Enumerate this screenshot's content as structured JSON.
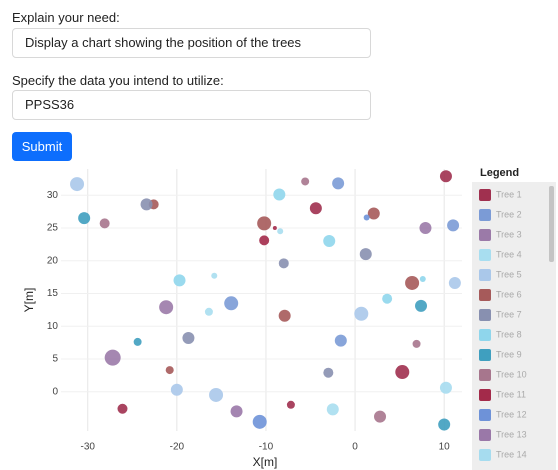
{
  "form": {
    "need_label": "Explain your need:",
    "need_value": "Display a chart showing the position of the trees",
    "data_label": "Specify the data you intend to utilize:",
    "data_value": "PPSS36",
    "submit": "Submit"
  },
  "chart_data": {
    "type": "scatter",
    "xlabel": "X[m]",
    "ylabel": "Y[m]",
    "legend_title": "Legend",
    "legend": "right",
    "grid": true,
    "xlim": [
      -33,
      12
    ],
    "ylim": [
      -6,
      34
    ],
    "xticks": [
      -30,
      -20,
      -10,
      0,
      10
    ],
    "yticks": [
      0,
      5,
      10,
      15,
      20,
      25,
      30
    ],
    "series": [
      {
        "name": "Tree 1",
        "color": "#a0304f",
        "x": [
          -26.1,
          -7.2,
          -4.4,
          5.3,
          10.2
        ],
        "values": [
          -2.6,
          -2.0,
          28.0,
          3.0,
          32.9
        ],
        "sizes": [
          5,
          4,
          6,
          7,
          6
        ]
      },
      {
        "name": "Tree 2",
        "color": "#7b9bd6",
        "x": [
          -13.9,
          -1.9,
          -1.6,
          11.0
        ],
        "values": [
          13.5,
          31.8,
          7.8,
          25.4
        ],
        "sizes": [
          7,
          6,
          6,
          6
        ]
      },
      {
        "name": "Tree 3",
        "color": "#9b7aa8",
        "x": [
          -27.2,
          -21.2,
          7.9
        ],
        "values": [
          5.2,
          12.9,
          25.0
        ],
        "sizes": [
          8,
          7,
          6
        ]
      },
      {
        "name": "Tree 4",
        "color": "#a8def0",
        "x": [
          -16.4,
          -15.8,
          -8.4,
          -2.5
        ],
        "values": [
          12.2,
          17.7,
          24.5,
          -2.7
        ],
        "sizes": [
          4,
          3,
          3,
          6
        ]
      },
      {
        "name": "Tree 5",
        "color": "#aac8ea",
        "x": [
          -31.2,
          -20.0,
          -15.6,
          0.7,
          11.2
        ],
        "values": [
          31.7,
          0.3,
          -0.5,
          11.9,
          16.6
        ],
        "sizes": [
          7,
          6,
          7,
          7,
          6
        ]
      },
      {
        "name": "Tree 6",
        "color": "#a65a5a",
        "x": [
          -22.6,
          -20.8,
          -10.2,
          -7.9,
          2.1,
          6.4
        ],
        "values": [
          28.6,
          3.3,
          25.7,
          11.6,
          27.2,
          16.6
        ],
        "sizes": [
          5,
          4,
          7,
          6,
          6,
          7
        ]
      },
      {
        "name": "Tree 7",
        "color": "#8890b0",
        "x": [
          -23.4,
          -18.7,
          -8.0,
          -3.0,
          1.2
        ],
        "values": [
          28.6,
          8.2,
          19.6,
          2.9,
          21.0
        ],
        "sizes": [
          6,
          6,
          5,
          5,
          6
        ]
      },
      {
        "name": "Tree 8",
        "color": "#8fd6ec",
        "x": [
          -19.7,
          -8.5,
          -2.9,
          3.6,
          7.6
        ],
        "values": [
          17.0,
          30.1,
          23.0,
          14.2,
          17.2
        ],
        "sizes": [
          6,
          6,
          6,
          5,
          3
        ]
      },
      {
        "name": "Tree 9",
        "color": "#3f9fbf",
        "x": [
          -30.4,
          -24.4,
          7.4,
          10.0
        ],
        "values": [
          26.5,
          7.6,
          13.1,
          -5.0
        ],
        "sizes": [
          6,
          4,
          6,
          6
        ]
      },
      {
        "name": "Tree 10",
        "color": "#a7768d",
        "x": [
          -28.1,
          -5.6,
          2.8,
          6.9
        ],
        "values": [
          25.7,
          32.1,
          -3.8,
          7.3
        ],
        "sizes": [
          5,
          4,
          6,
          4
        ]
      },
      {
        "name": "Tree 11",
        "color": "#a32a4a",
        "x": [
          -10.2,
          -9.0
        ],
        "values": [
          23.1,
          25.0
        ],
        "sizes": [
          5,
          2
        ]
      },
      {
        "name": "Tree 12",
        "color": "#6e92d8",
        "x": [
          -10.7,
          1.3
        ],
        "values": [
          -4.6,
          26.6
        ],
        "sizes": [
          7,
          3
        ]
      },
      {
        "name": "Tree 13",
        "color": "#9a78a8",
        "x": [
          -13.3
        ],
        "values": [
          -3.0
        ],
        "sizes": [
          6
        ]
      },
      {
        "name": "Tree 14",
        "color": "#a6dcef",
        "x": [
          10.2
        ],
        "values": [
          0.6
        ],
        "sizes": [
          6
        ]
      }
    ]
  }
}
